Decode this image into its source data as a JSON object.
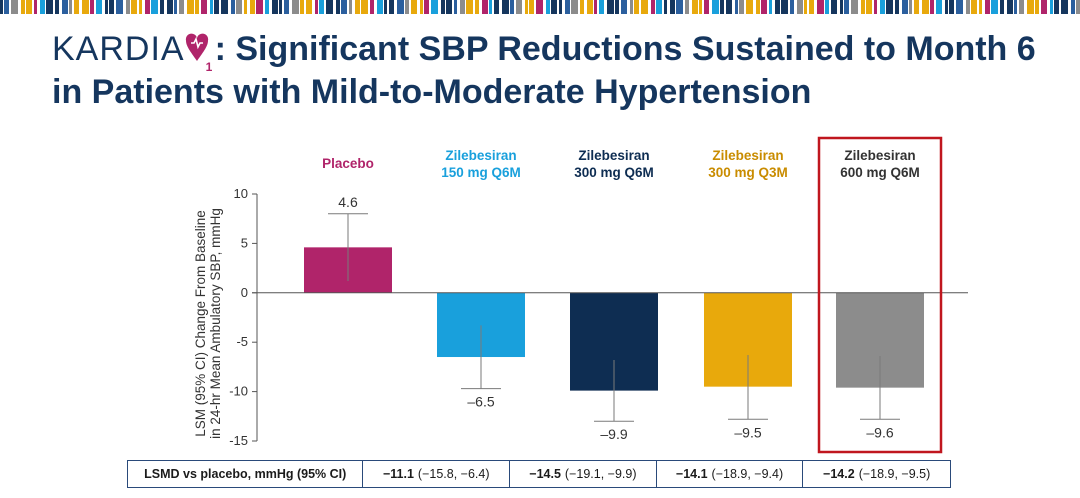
{
  "header": {
    "brand": "KARDIA",
    "brand_sub": "1",
    "title": ": Significant SBP Reductions Sustained to Month 6 in Patients with Mild-to-Moderate Hypertension"
  },
  "colors": {
    "title": "#15365e",
    "placebo": "#b0246a",
    "zil150": "#19a0dc",
    "zil300q6": "#0e2d52",
    "zil300q3": "#e8a90c",
    "zil600": "#8c8c8c",
    "highlight_box": "#c0161e"
  },
  "chart_data": {
    "type": "bar",
    "ylabel": "LSM (95% CI) Change From Baseline in 24-hr Mean Ambulatory SBP, mmHg",
    "ylim": [
      -15,
      10
    ],
    "yticks": [
      "10",
      "5",
      "0",
      "-5",
      "-10",
      "-15"
    ],
    "categories": [
      {
        "line1": "Placebo",
        "line2": "",
        "color": "#b0246a"
      },
      {
        "line1": "Zilebesiran",
        "line2": "150 mg Q6M",
        "color": "#19a0dc"
      },
      {
        "line1": "Zilebesiran",
        "line2": "300 mg Q6M",
        "color": "#0e2d52"
      },
      {
        "line1": "Zilebesiran",
        "line2": "300 mg Q3M",
        "color": "#c98c00"
      },
      {
        "line1": "Zilebesiran",
        "line2": "600 mg Q6M",
        "color": "#333333"
      }
    ],
    "values": [
      4.6,
      -6.5,
      -9.9,
      -9.5,
      -9.6
    ],
    "value_labels": [
      "4.6",
      "–6.5",
      "–9.9",
      "–9.5",
      "–9.6"
    ],
    "ci": [
      [
        1.2,
        8.0
      ],
      [
        -9.7,
        -3.3
      ],
      [
        -13.0,
        -6.8
      ],
      [
        -12.8,
        -6.3
      ],
      [
        -12.8,
        -6.4
      ]
    ],
    "bar_colors": [
      "#b0246a",
      "#19a0dc",
      "#0e2d52",
      "#e8a90c",
      "#8c8c8c"
    ],
    "highlighted": "Zilebesiran 600 mg Q6M"
  },
  "table": {
    "header": "LSMD vs placebo, mmHg (95% CI)",
    "cells": [
      {
        "value": "−11.1",
        "ci": "(−15.8, −6.4)"
      },
      {
        "value": "−14.5",
        "ci": "(−19.1, −9.9)"
      },
      {
        "value": "−14.1",
        "ci": "(−18.9, −9.4)"
      },
      {
        "value": "−14.2",
        "ci": "(−18.9, −9.5)"
      }
    ]
  }
}
